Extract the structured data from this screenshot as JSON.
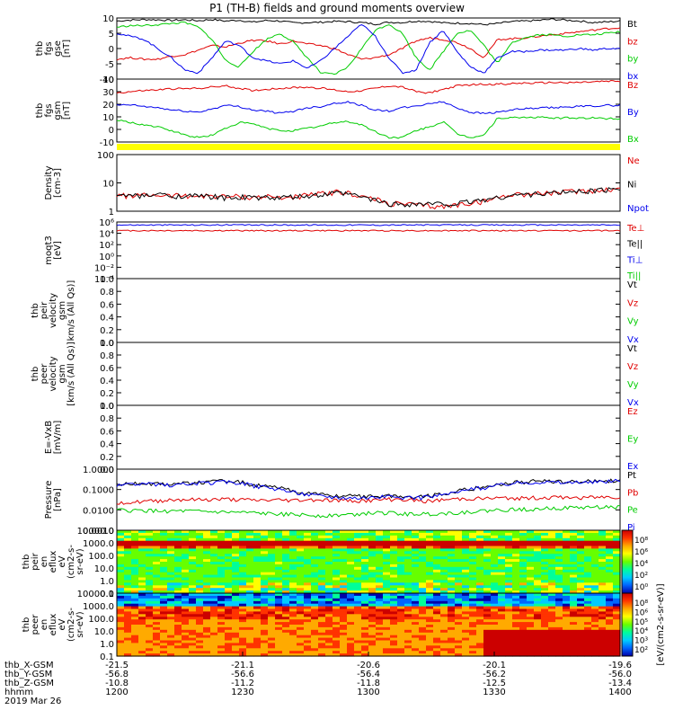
{
  "title": "P1 (TH-B) fields and ground moments overview",
  "colors": {
    "black": "#000000",
    "red": "#e00000",
    "green": "#00cc00",
    "blue": "#0000ee",
    "yellow": "#ffff00"
  },
  "chart_data": [
    {
      "type": "line",
      "ylabel": [
        "thb",
        "fgs",
        "gse",
        "[nT]"
      ],
      "ylim": [
        -10,
        10
      ],
      "yticks": [
        "10",
        "5",
        "0",
        "-5",
        "-10"
      ],
      "series": [
        {
          "name": "Bt",
          "color": "black",
          "values": [
            9,
            9.3,
            9.5,
            9.4,
            9.2,
            9.4,
            9.1,
            9.5,
            9.0,
            9.3,
            8.6,
            9.2,
            9.0,
            8.4,
            8.5,
            8.6,
            8.9,
            8.8,
            8.5,
            8.0,
            8.6,
            8.5,
            9.0,
            8.9,
            8.4,
            8.3,
            8.2,
            7.8,
            8.2,
            8.8,
            9.0,
            9.2,
            9.6,
            9.3,
            9.0,
            8.5,
            8.7,
            9.0
          ]
        },
        {
          "name": "bz",
          "color": "red",
          "values": [
            -3.5,
            -3,
            -3.5,
            -3.5,
            -2.5,
            -2,
            -0.5,
            1,
            0.5,
            1.8,
            2.7,
            2.5,
            1.5,
            2.5,
            1.5,
            1,
            0,
            -2,
            -3.5,
            -3,
            -2,
            0,
            2.5,
            3.5,
            3,
            2,
            0,
            -3,
            3,
            3.2,
            3.5,
            4,
            4.5,
            5,
            5.5,
            6,
            6.5,
            6.8
          ]
        },
        {
          "name": "by",
          "color": "green",
          "values": [
            7,
            7.5,
            7.5,
            7.8,
            8.2,
            8.5,
            7,
            3,
            -4,
            -6,
            -1,
            3,
            5,
            2,
            -3,
            -8,
            -8.5,
            -6,
            0,
            6,
            8,
            5,
            -3,
            -7,
            -1,
            5,
            6,
            1,
            -5,
            2,
            3.5,
            4.5,
            4.5,
            4,
            4.5,
            4.5,
            5,
            5.5
          ]
        },
        {
          "name": "bx",
          "color": "blue",
          "values": [
            5,
            4,
            3,
            0,
            -3,
            -7,
            -8,
            -3,
            2.5,
            1,
            -3,
            -4,
            -5,
            -4,
            -6.5,
            -4,
            0,
            4,
            8,
            4,
            -3,
            -8,
            -7,
            2,
            6,
            -1,
            -6,
            -8,
            -3,
            -1,
            -1,
            -0.5,
            -0.5,
            -0.5,
            0,
            -0.5,
            0,
            0
          ]
        }
      ],
      "legend": [
        "Bt",
        "bz",
        "by",
        "bx"
      ]
    },
    {
      "type": "line",
      "ylabel": [
        "thb",
        "fgs",
        "gsm",
        "[nT]"
      ],
      "ylim": [
        -15,
        40
      ],
      "yticks": [
        "40",
        "30",
        "20",
        "10",
        "0",
        "-10"
      ],
      "series": [
        {
          "name": "Bz",
          "color": "red",
          "values": [
            28,
            29,
            30,
            30.5,
            31.5,
            31.5,
            32,
            33,
            34,
            32,
            30,
            31,
            32,
            32.5,
            33,
            32,
            30.5,
            29,
            30,
            32,
            34,
            33,
            29,
            28,
            31,
            34,
            35,
            35.5,
            35.5,
            36,
            36.5,
            36.5,
            37,
            37,
            37,
            37.5,
            38,
            38
          ]
        },
        {
          "name": "By",
          "color": "blue",
          "values": [
            17,
            17.5,
            16,
            15,
            13,
            12,
            11,
            14,
            17,
            16,
            13,
            12,
            10,
            12,
            15,
            16,
            19,
            20,
            17,
            13,
            12,
            15,
            16,
            19,
            20,
            15,
            11,
            10,
            11,
            13,
            14,
            14.5,
            15,
            15.5,
            16,
            16.5,
            17,
            17
          ]
        },
        {
          "name": "Bx",
          "color": "green",
          "values": [
            4,
            2,
            0,
            -2,
            -5,
            -9,
            -11,
            -9,
            -3,
            2,
            1,
            -3,
            -5,
            -5,
            -3,
            -1,
            2,
            3,
            0,
            -6,
            -11,
            -11,
            -5,
            -2,
            3,
            -8,
            -11,
            -9,
            6,
            6,
            6.5,
            6.5,
            6,
            6,
            6,
            6,
            5.5,
            5.5
          ]
        }
      ],
      "legend": [
        "Bz",
        "By",
        "Bx"
      ]
    },
    {
      "type": "line",
      "ylabel": [
        "Density",
        "[cm-3]"
      ],
      "scale": "log",
      "ylim": [
        1,
        200
      ],
      "yticks": [
        "100",
        "10",
        "1"
      ],
      "series": [
        {
          "name": "Ne",
          "color": "red",
          "values": [
            4.5,
            4.2,
            4.4,
            4.6,
            4.2,
            4.5,
            4,
            4.3,
            3.8,
            4,
            3.7,
            4,
            3.5,
            3.8,
            4.5,
            5,
            6,
            5.5,
            4,
            3,
            2,
            2,
            1.8,
            1.6,
            1.5,
            1.8,
            2.2,
            2.5,
            3.5,
            5,
            5,
            5.2,
            5.5,
            6,
            6.5,
            7,
            7.5,
            8
          ]
        },
        {
          "name": "Ni",
          "color": "black",
          "values": [
            4,
            4.5,
            4,
            5,
            4,
            4.5,
            4,
            4,
            3.5,
            3.8,
            3.5,
            3.6,
            3.4,
            3.8,
            4,
            4.5,
            5.5,
            5,
            3.8,
            2.8,
            2,
            2,
            2,
            2,
            2,
            2,
            2.5,
            3,
            3.5,
            4.5,
            4.8,
            5,
            5.5,
            6,
            6.5,
            7,
            7.5,
            8
          ]
        },
        {
          "name": "Npot",
          "color": "blue",
          "values": []
        }
      ],
      "legend": [
        "Ne",
        "Ni",
        "Npot"
      ]
    },
    {
      "type": "line",
      "ylabel": [
        "moqt3",
        "[eV]"
      ],
      "scale": "log",
      "ylim": [
        0.0001,
        1000000
      ],
      "yticks": [
        "10⁶",
        "10⁴",
        "10²",
        "10⁰",
        "10⁻²",
        "10⁻⁴"
      ],
      "series": [
        {
          "name": "Te⊥",
          "color": "red",
          "values": [
            30000,
            30000,
            30000,
            30000,
            30000,
            30000,
            30000,
            30000,
            30000,
            30000,
            30000,
            30000,
            30000,
            30000,
            30000,
            30000,
            30000,
            30000,
            30000,
            30000,
            30000,
            30000,
            30000,
            30000,
            30000,
            30000,
            30000,
            30000,
            30000,
            30000,
            30000,
            30000,
            30000,
            30000,
            30000,
            30000,
            30000,
            30000
          ]
        },
        {
          "name": "Te||",
          "color": "black",
          "values": []
        },
        {
          "name": "Ti⊥",
          "color": "blue",
          "values": [
            300000,
            300000,
            300000,
            300000,
            300000,
            300000,
            300000,
            300000,
            300000,
            300000,
            300000,
            300000,
            300000,
            300000,
            300000,
            300000,
            300000,
            300000,
            300000,
            300000,
            300000,
            300000,
            300000,
            300000,
            300000,
            300000,
            300000,
            300000,
            300000,
            300000,
            300000,
            300000,
            300000,
            300000,
            300000,
            300000,
            300000,
            300000
          ]
        },
        {
          "name": "Ti||",
          "color": "green",
          "values": []
        }
      ],
      "legend": [
        "Te⊥",
        "Te||",
        "Ti⊥",
        "Ti||"
      ]
    },
    {
      "type": "line",
      "ylabel": [
        "thb",
        "peir",
        "velocity",
        "gsm",
        "km/s (All Qs)]"
      ],
      "ylim": [
        0,
        1
      ],
      "yticks": [
        "1.0",
        "0.8",
        "0.6",
        "0.4",
        "0.2",
        "0.0"
      ],
      "series": [
        {
          "name": "Vt",
          "color": "black",
          "values": []
        },
        {
          "name": "Vz",
          "color": "red",
          "values": []
        },
        {
          "name": "Vy",
          "color": "green",
          "values": []
        },
        {
          "name": "Vx",
          "color": "blue",
          "values": []
        }
      ],
      "legend": [
        "Vt",
        "Vz",
        "Vy",
        "Vx"
      ]
    },
    {
      "type": "line",
      "ylabel": [
        "thb",
        "peer",
        "velocity",
        "gsm",
        "[km/s (All Qs)]"
      ],
      "ylim": [
        0,
        1
      ],
      "yticks": [
        "1.0",
        "0.8",
        "0.6",
        "0.4",
        "0.2",
        "0.0"
      ],
      "series": [
        {
          "name": "Vt",
          "color": "black",
          "values": []
        },
        {
          "name": "Vz",
          "color": "red",
          "values": []
        },
        {
          "name": "Vy",
          "color": "green",
          "values": []
        },
        {
          "name": "Vx",
          "color": "blue",
          "values": []
        }
      ],
      "legend": [
        "Vt",
        "Vz",
        "Vy",
        "Vx"
      ]
    },
    {
      "type": "line",
      "ylabel": [
        "E=-VxB",
        "[mV/m]"
      ],
      "ylim": [
        0,
        1
      ],
      "yticks": [
        "1.0",
        "0.8",
        "0.6",
        "0.4",
        "0.2",
        "0.0"
      ],
      "series": [
        {
          "name": "Ez",
          "color": "red",
          "values": []
        },
        {
          "name": "Ey",
          "color": "green",
          "values": []
        },
        {
          "name": "Ex",
          "color": "blue",
          "values": []
        }
      ],
      "legend": [
        "Ez",
        "Ey",
        "Ex"
      ]
    },
    {
      "type": "line",
      "ylabel": [
        "Pressure",
        "[nPa]"
      ],
      "scale": "log",
      "ylim": [
        0.0006,
        1.5
      ],
      "yticks": [
        "1.0000",
        "0.1000",
        "0.0100",
        "0.0010"
      ],
      "series": [
        {
          "name": "Pt",
          "color": "black",
          "values": [
            0.23,
            0.22,
            0.25,
            0.24,
            0.23,
            0.25,
            0.27,
            0.3,
            0.33,
            0.3,
            0.2,
            0.16,
            0.13,
            0.09,
            0.07,
            0.06,
            0.05,
            0.048,
            0.046,
            0.05,
            0.05,
            0.045,
            0.042,
            0.05,
            0.065,
            0.09,
            0.12,
            0.15,
            0.2,
            0.27,
            0.3,
            0.33,
            0.32,
            0.3,
            0.3,
            0.32,
            0.35,
            0.36
          ]
        },
        {
          "name": "Pb",
          "color": "red",
          "values": [
            0.022,
            0.021,
            0.024,
            0.026,
            0.03,
            0.031,
            0.03,
            0.031,
            0.032,
            0.03,
            0.028,
            0.028,
            0.029,
            0.028,
            0.03,
            0.03,
            0.028,
            0.027,
            0.027,
            0.028,
            0.032,
            0.031,
            0.027,
            0.026,
            0.029,
            0.033,
            0.035,
            0.035,
            0.036,
            0.037,
            0.038,
            0.038,
            0.04,
            0.04,
            0.04,
            0.041,
            0.042,
            0.043
          ]
        },
        {
          "name": "Pe",
          "color": "green",
          "values": [
            0.008,
            0.0075,
            0.0075,
            0.0072,
            0.007,
            0.007,
            0.0066,
            0.0063,
            0.006,
            0.0058,
            0.0055,
            0.005,
            0.0048,
            0.0045,
            0.0042,
            0.004,
            0.0042,
            0.0045,
            0.005,
            0.0055,
            0.0055,
            0.005,
            0.0048,
            0.005,
            0.0052,
            0.0058,
            0.0065,
            0.0072,
            0.008,
            0.0085,
            0.009,
            0.0095,
            0.01,
            0.0105,
            0.011,
            0.0115,
            0.012,
            0.012
          ]
        },
        {
          "name": "Pi",
          "color": "blue",
          "values": [
            0.2,
            0.2,
            0.22,
            0.21,
            0.2,
            0.22,
            0.24,
            0.27,
            0.3,
            0.27,
            0.18,
            0.14,
            0.11,
            0.08,
            0.06,
            0.05,
            0.043,
            0.04,
            0.04,
            0.043,
            0.043,
            0.04,
            0.037,
            0.044,
            0.058,
            0.08,
            0.11,
            0.14,
            0.19,
            0.25,
            0.28,
            0.3,
            0.29,
            0.27,
            0.27,
            0.29,
            0.32,
            0.33
          ]
        }
      ],
      "legend": [
        "Pt",
        "Pb",
        "Pe",
        "Pi"
      ]
    },
    {
      "type": "heatmap",
      "ylabel": [
        "thb",
        "peir",
        "en",
        "eflux",
        "eV",
        "(cm2-s-",
        "sr-eV)"
      ],
      "scale": "log",
      "ylim": [
        0.1,
        10000
      ],
      "yticks": [
        "10000.0",
        "1000.0",
        "100.0",
        "10.0",
        "1.0",
        "0.1"
      ]
    },
    {
      "type": "heatmap",
      "ylabel": [
        "thb",
        "peer",
        "en",
        "eflux",
        "eV",
        "(cm2-s-",
        "sr-eV)"
      ],
      "scale": "log",
      "ylim": [
        0.1,
        10000
      ],
      "yticks": [
        "10000.0",
        "1000.0",
        "100.0",
        "10.0",
        "1.0",
        "0.1"
      ]
    }
  ],
  "colorbars": [
    {
      "label": "[eV/(cm2-s-sr-eV)]",
      "ticks": [
        "10⁸",
        "10⁶",
        "10⁴",
        "10²",
        "10⁰"
      ]
    },
    {
      "label": "[eV/(cm2-s-sr-eV)]",
      "ticks": [
        "10⁸",
        "10⁶",
        "10⁵",
        "10⁴",
        "10³",
        "10²"
      ]
    }
  ],
  "xaxis": {
    "rows": [
      {
        "label": "thb_X-GSM",
        "values": [
          "-21.5",
          "-21.1",
          "-20.6",
          "-20.1",
          "-19.6"
        ]
      },
      {
        "label": "thb_Y-GSM",
        "values": [
          "-56.8",
          "-56.6",
          "-56.4",
          "-56.2",
          "-56.0"
        ]
      },
      {
        "label": "thb_Z-GSM",
        "values": [
          "-10.8",
          "-11.2",
          "-11.8",
          "-12.5",
          "-13.4"
        ]
      },
      {
        "label": "hhmm",
        "values": [
          "1200",
          "1230",
          "1300",
          "1330",
          "1400"
        ]
      }
    ],
    "date": "2019 Mar 26"
  }
}
